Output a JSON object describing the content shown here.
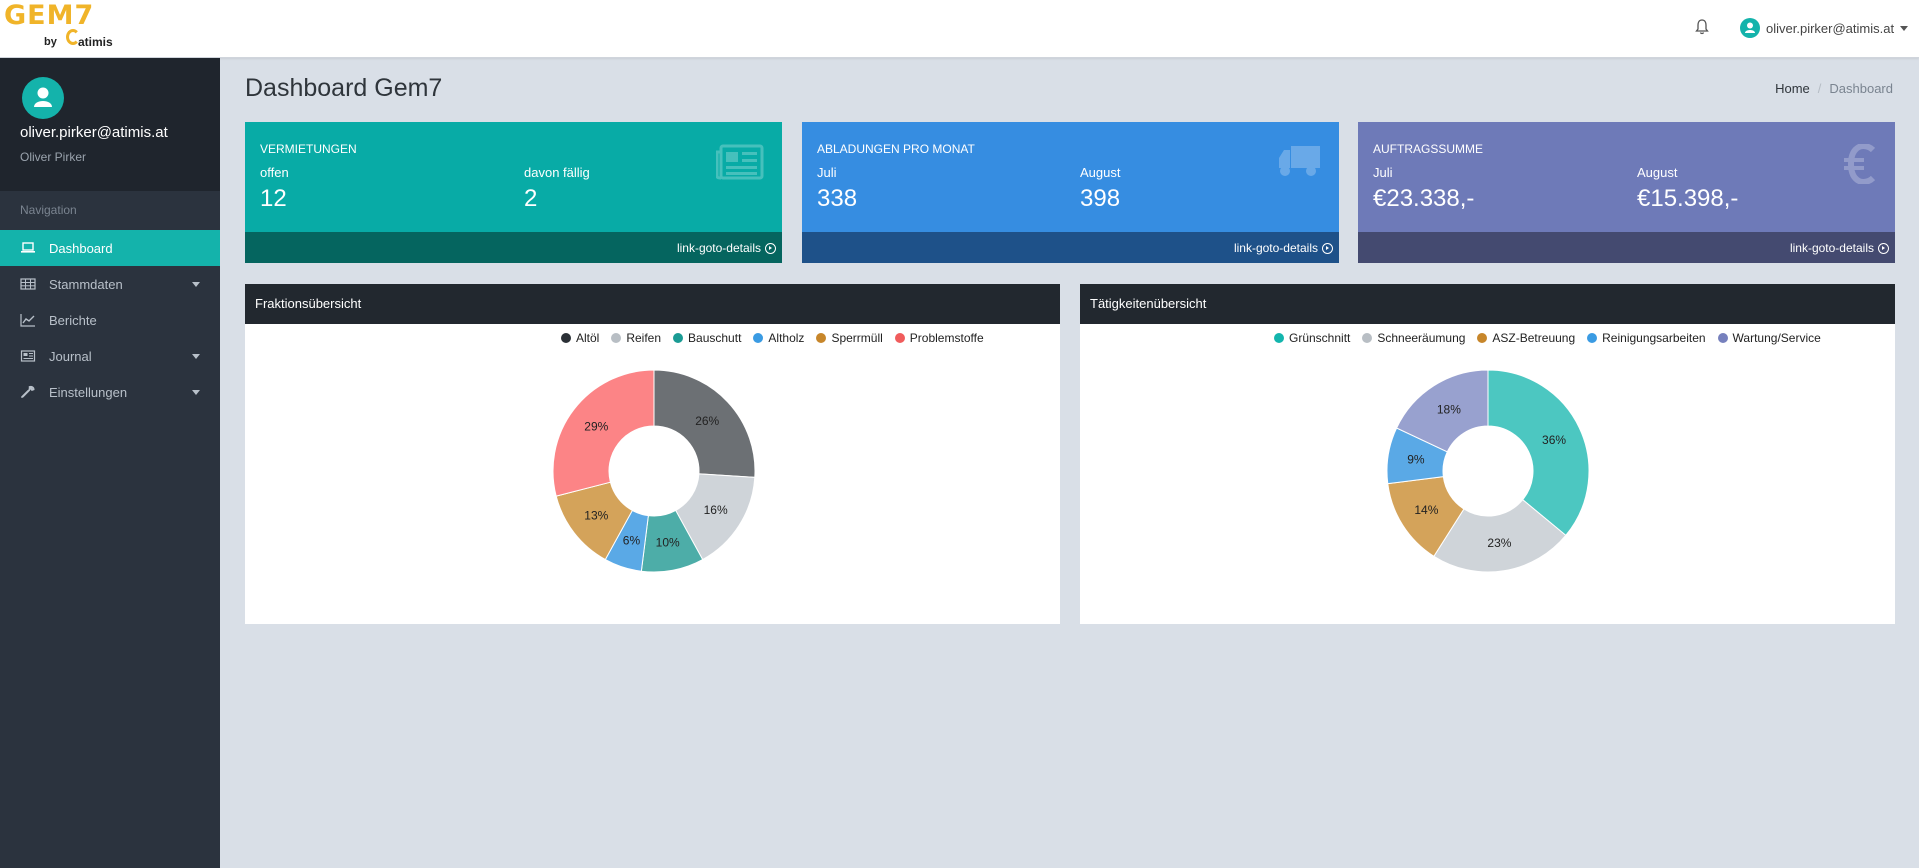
{
  "header": {
    "logo_text": "GEM7",
    "logo_by": "by",
    "logo_brand": "atimis",
    "user_email": "oliver.pirker@atimis.at"
  },
  "sidebar": {
    "profile_email": "oliver.pirker@atimis.at",
    "profile_name": "Oliver Pirker",
    "nav_heading": "Navigation",
    "items": [
      {
        "label": "Dashboard",
        "icon": "laptop-icon",
        "active": true
      },
      {
        "label": "Stammdaten",
        "icon": "table-icon",
        "dropdown": true
      },
      {
        "label": "Berichte",
        "icon": "line-chart-icon"
      },
      {
        "label": "Journal",
        "icon": "newspaper-icon",
        "dropdown": true
      },
      {
        "label": "Einstellungen",
        "icon": "wrench-icon",
        "dropdown": true
      }
    ]
  },
  "page": {
    "title": "Dashboard Gem7",
    "breadcrumb": {
      "home": "Home",
      "current": "Dashboard"
    }
  },
  "stats": [
    {
      "title": "VERMIETUNGEN",
      "label_a": "offen",
      "value_a": "12",
      "label_b": "davon fällig",
      "value_b": "2",
      "link": "link-goto-details",
      "icon": "newspaper-icon",
      "color": "#08aba6"
    },
    {
      "title": "ABLADUNGEN PRO MONAT",
      "label_a": "Juli",
      "value_a": "338",
      "label_b": "August",
      "value_b": "398",
      "link": "link-goto-details",
      "icon": "truck-icon",
      "color": "#368de1"
    },
    {
      "title": "AUFTRAGSSUMME",
      "label_a": "Juli",
      "value_a": "€23.338,-",
      "label_b": "August",
      "value_b": "€15.398,-",
      "link": "link-goto-details",
      "icon": "euro-icon",
      "color": "#6e7ab8"
    }
  ],
  "chart_data": [
    {
      "type": "pie",
      "title": "Fraktionsübersicht",
      "categories": [
        "Altöl",
        "Reifen",
        "Bauschutt",
        "Altholz",
        "Sperrmüll",
        "Problemstoffe"
      ],
      "values": [
        26,
        16,
        10,
        6,
        13,
        29
      ],
      "colors": [
        "#6c7074",
        "#cfd4d9",
        "#4dada8",
        "#5aa9e6",
        "#d4a35a",
        "#fc8486"
      ],
      "legend_colors": [
        "#2b3036",
        "#b8bec4",
        "#1a9b94",
        "#3a9be3",
        "#c7862a",
        "#f05c5c"
      ],
      "labels": [
        "26%",
        "16%",
        "10%",
        "6%",
        "13%",
        "29%"
      ],
      "legend": "top"
    },
    {
      "type": "pie",
      "title": "Tätigkeitenübersicht",
      "categories": [
        "Grünschnitt",
        "Schneeräumung",
        "ASZ-Betreuung",
        "Reinigungsarbeiten",
        "Wartung/Service"
      ],
      "values": [
        36,
        23,
        14,
        9,
        18
      ],
      "colors": [
        "#4cc7c1",
        "#cfd4d9",
        "#d4a35a",
        "#5aa9e6",
        "#98a1cf"
      ],
      "legend_colors": [
        "#13b5ad",
        "#b8bec4",
        "#c7862a",
        "#3a9be3",
        "#7680bd"
      ],
      "labels": [
        "36%",
        "23%",
        "14%",
        "9%",
        "18%"
      ],
      "legend": "top"
    }
  ]
}
